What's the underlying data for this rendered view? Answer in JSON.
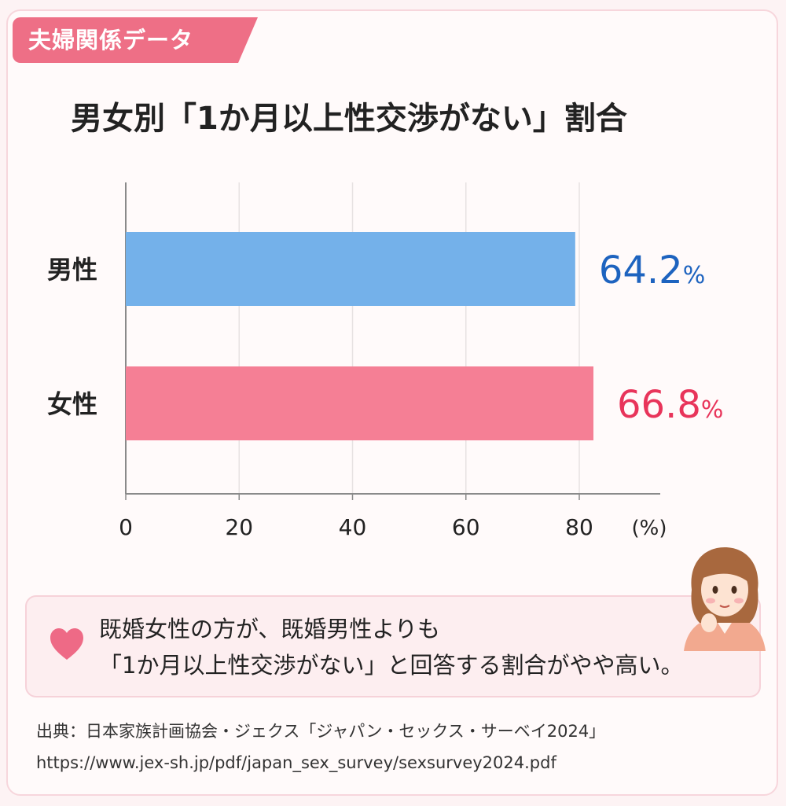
{
  "tag_label": "夫婦関係データ",
  "title": "男女別「1か月以上性交渉がない」割合",
  "chart_data": {
    "type": "bar",
    "orientation": "horizontal",
    "title": "男女別「1か月以上性交渉がない」割合",
    "categories": [
      "男性",
      "女性"
    ],
    "values": [
      64.2,
      66.8
    ],
    "value_labels": [
      "64.2",
      "66.8"
    ],
    "value_unit": "%",
    "x_ticks": [
      "0",
      "20",
      "40",
      "60",
      "80"
    ],
    "x_unit_label": "(%)",
    "xlim": [
      0,
      80
    ],
    "colors": [
      "#74b1ea",
      "#f57f95"
    ],
    "label_colors": [
      "#1d63bf",
      "#e8345a"
    ],
    "grid": true
  },
  "callout": {
    "line1": "既婚女性の方が、既婚男性よりも",
    "line2": "「1か月以上性交渉がない」と回答する割合がやや高い。",
    "icon": "heart-icon"
  },
  "avatar_icon": "woman-avatar-icon",
  "source": {
    "line1": "出典：日本家族計画協会・ジェクス「ジャパン・セックス・サーベイ2024」",
    "line2": "https://www.jex-sh.jp/pdf/japan_sex_survey/sexsurvey2024.pdf"
  }
}
